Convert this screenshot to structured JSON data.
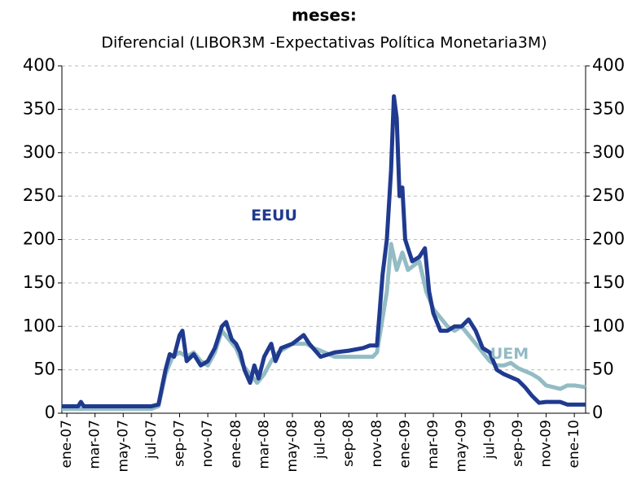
{
  "chart_data": {
    "type": "line",
    "title": "meses:",
    "subtitle": "Diferencial (LIBOR3M -Expectativas Política Monetaria3M)",
    "annotations": [
      {
        "text": "EEUU",
        "x": 14.7,
        "y": 227
      },
      {
        "text": "UEM",
        "x": 31.4,
        "y": 68
      }
    ],
    "xlim": [
      -0.35,
      36.8
    ],
    "xticks": [
      {
        "value": 0,
        "label": "ene-07"
      },
      {
        "value": 2,
        "label": "mar-07"
      },
      {
        "value": 4,
        "label": "may-07"
      },
      {
        "value": 6,
        "label": "jul-07"
      },
      {
        "value": 8,
        "label": "sep-07"
      },
      {
        "value": 10,
        "label": "nov-07"
      },
      {
        "value": 12,
        "label": "ene-08"
      },
      {
        "value": 14,
        "label": "mar-08"
      },
      {
        "value": 16,
        "label": "may-08"
      },
      {
        "value": 18,
        "label": "jul-08"
      },
      {
        "value": 20,
        "label": "sep-08"
      },
      {
        "value": 22,
        "label": "nov-08"
      },
      {
        "value": 24,
        "label": "ene-09"
      },
      {
        "value": 26,
        "label": "mar-09"
      },
      {
        "value": 28,
        "label": "may-09"
      },
      {
        "value": 30,
        "label": "jul-09"
      },
      {
        "value": 32,
        "label": "sep-09"
      },
      {
        "value": 34,
        "label": "nov-09"
      },
      {
        "value": 36,
        "label": "ene-10"
      }
    ],
    "ylim": [
      0,
      400
    ],
    "yticks": [
      0,
      50,
      100,
      150,
      200,
      250,
      300,
      350,
      400
    ],
    "y2lim": [
      0,
      400
    ],
    "y2ticks": [
      0,
      50,
      100,
      150,
      200,
      250,
      300,
      350,
      400
    ],
    "grid": true,
    "series": [
      {
        "name": "UEM",
        "color": "#93bcc4",
        "x": [
          -0.35,
          6,
          6.5,
          7,
          7.5,
          8,
          8.5,
          9,
          9.5,
          10,
          10.5,
          11,
          11.5,
          12,
          12.5,
          13,
          13.5,
          14,
          14.5,
          15,
          16,
          17,
          17.5,
          18,
          19,
          20,
          21,
          21.7,
          22,
          22.3,
          22.7,
          23,
          23.4,
          23.8,
          24.2,
          25,
          25.5,
          26,
          27,
          27.5,
          28,
          28.5,
          29,
          29.5,
          30,
          30.5,
          31,
          31.5,
          32,
          33,
          33.5,
          34,
          35,
          35.5,
          36,
          36.8
        ],
        "values": [
          5,
          5,
          8,
          45,
          65,
          70,
          65,
          70,
          60,
          55,
          70,
          95,
          85,
          75,
          55,
          45,
          35,
          45,
          60,
          70,
          80,
          80,
          75,
          72,
          65,
          65,
          65,
          65,
          70,
          100,
          140,
          195,
          165,
          185,
          165,
          175,
          140,
          120,
          100,
          95,
          100,
          90,
          80,
          70,
          60,
          55,
          55,
          58,
          52,
          45,
          40,
          32,
          28,
          32,
          32,
          30
        ]
      },
      {
        "name": "EEUU",
        "color": "#1f3a8f",
        "x": [
          -0.35,
          0.8,
          1,
          1.2,
          6,
          6.5,
          7,
          7.3,
          7.6,
          8,
          8.2,
          8.5,
          9,
          9.5,
          10,
          10.5,
          11,
          11.3,
          11.7,
          12,
          12.3,
          12.6,
          13,
          13.3,
          13.6,
          14,
          14.5,
          14.8,
          15.2,
          16,
          16.8,
          17.2,
          18,
          19,
          20,
          21,
          21.5,
          22,
          22.4,
          22.7,
          23,
          23.2,
          23.4,
          23.6,
          23.8,
          24,
          24.5,
          25,
          25.4,
          25.7,
          26,
          26.5,
          27,
          27.5,
          28,
          28.5,
          29,
          29.5,
          30,
          30.5,
          31,
          32,
          32.5,
          33,
          33.5,
          34,
          35,
          35.5,
          36,
          36.8
        ],
        "values": [
          8,
          8,
          13,
          8,
          8,
          10,
          50,
          68,
          65,
          90,
          95,
          60,
          68,
          55,
          60,
          75,
          100,
          105,
          85,
          80,
          70,
          50,
          35,
          55,
          40,
          65,
          80,
          60,
          75,
          80,
          90,
          80,
          65,
          70,
          72,
          75,
          78,
          78,
          160,
          200,
          280,
          365,
          340,
          250,
          260,
          200,
          175,
          180,
          190,
          140,
          115,
          95,
          95,
          100,
          100,
          108,
          95,
          75,
          70,
          50,
          45,
          38,
          30,
          20,
          12,
          13,
          13,
          10,
          10,
          10
        ]
      }
    ]
  }
}
